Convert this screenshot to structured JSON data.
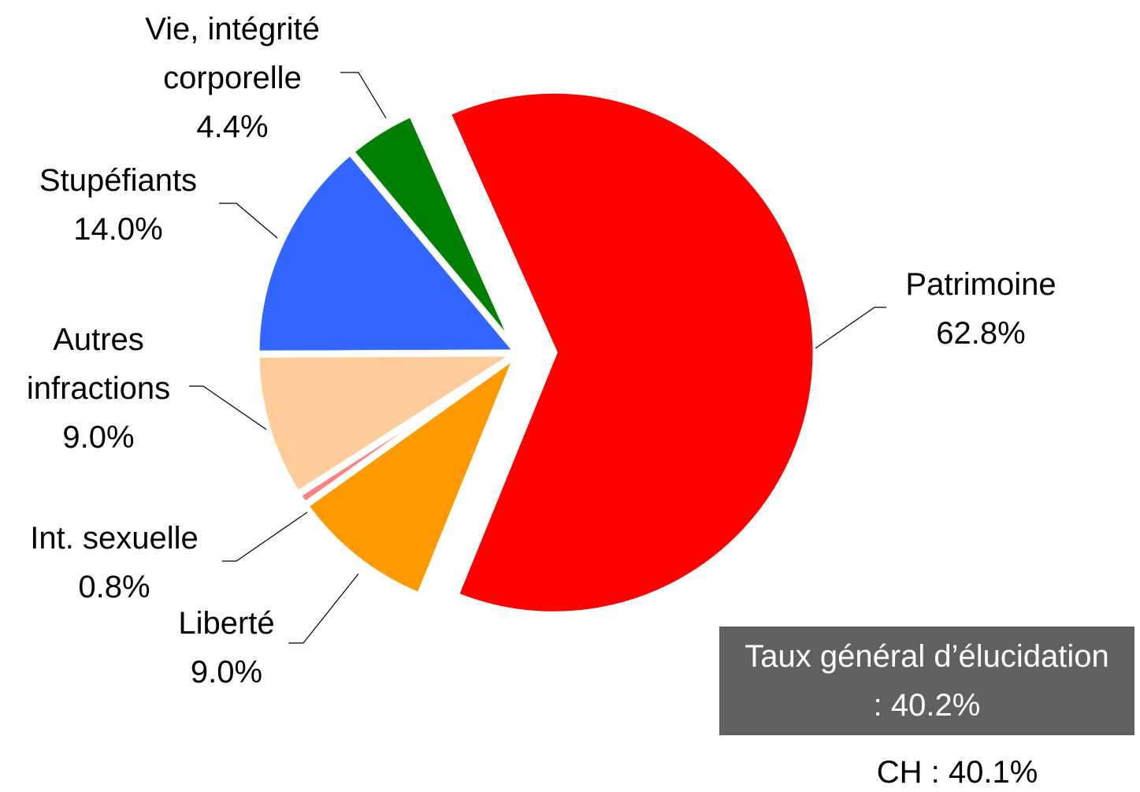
{
  "chart_data": {
    "type": "pie",
    "categories": [
      "Patrimoine",
      "Liberté",
      "Int. sexuelle",
      "Autres infractions",
      "Stupéfiants",
      "Vie, intégrité corporelle"
    ],
    "values": [
      62.8,
      9.0,
      0.8,
      9.0,
      14.0,
      4.4
    ],
    "value_labels": [
      "62.8%",
      "9.0%",
      "0.8%",
      "9.0%",
      "14.0%",
      "4.4%"
    ],
    "colors": [
      "#ff0000",
      "#ff9900",
      "#ff8080",
      "#ffcc99",
      "#3366ff",
      "#008000"
    ],
    "annotations": [
      "Taux général d’élucidation : 40.2%",
      "CH : 40.1%"
    ]
  }
}
